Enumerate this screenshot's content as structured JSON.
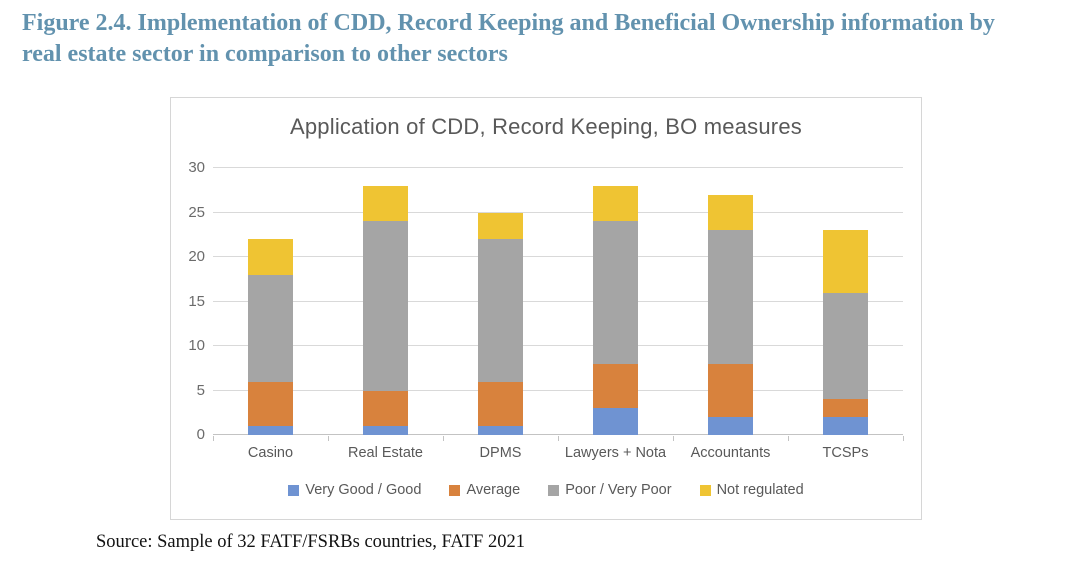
{
  "figure_title": "Figure 2.4. Implementation of CDD, Record Keeping and Beneficial Ownership information by real estate sector in comparison to other sectors",
  "source_note": "Source: Sample of 32 FATF/FSRBs countries, FATF 2021",
  "colors": {
    "figure_title": "#6292ae",
    "chart_text": "#595959",
    "tick_label": "#6b6b6b",
    "gridline": "#d9d9d9",
    "series_blue": "#6f93d2",
    "series_orange": "#d8823d",
    "series_gray": "#a5a5a5",
    "series_yellow": "#efc433"
  },
  "chart_data": {
    "type": "bar",
    "stacked": true,
    "title": "Application of CDD, Record Keeping, BO measures",
    "categories": [
      "Casino",
      "Real Estate",
      "DPMS",
      "Lawyers + Nota",
      "Accountants",
      "TCSPs"
    ],
    "series": [
      {
        "name": "Very Good / Good",
        "color": "#6f93d2",
        "values": [
          1,
          1,
          1,
          3,
          2,
          2
        ]
      },
      {
        "name": "Average",
        "color": "#d8823d",
        "values": [
          5,
          4,
          5,
          5,
          6,
          2
        ]
      },
      {
        "name": "Poor / Very Poor",
        "color": "#a5a5a5",
        "values": [
          12,
          19,
          16,
          16,
          15,
          12
        ]
      },
      {
        "name": "Not regulated",
        "color": "#efc433",
        "values": [
          4,
          4,
          3,
          4,
          4,
          7
        ]
      }
    ],
    "stack_totals": [
      22,
      28,
      25,
      28,
      27,
      23
    ],
    "xlabel": "",
    "ylabel": "",
    "ylim": [
      0,
      30
    ],
    "yticks": [
      0,
      5,
      10,
      15,
      20,
      25,
      30
    ],
    "grid": true,
    "legend_position": "bottom"
  }
}
